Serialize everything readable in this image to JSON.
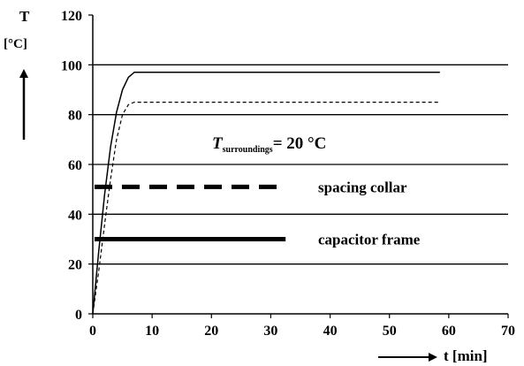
{
  "chart_data": {
    "type": "line",
    "ylabel_symbol": "T",
    "ylabel_unit": "[°C]",
    "xlabel": "t [min]",
    "xlim": [
      0,
      70
    ],
    "ylim": [
      0,
      120
    ],
    "x_ticks": [
      0,
      10,
      20,
      30,
      40,
      50,
      60,
      70
    ],
    "y_ticks": [
      0,
      20,
      40,
      60,
      80,
      100,
      120
    ],
    "grid": "horizontal",
    "annotation": {
      "symbol": "T",
      "subscript": "surroundings",
      "text": "= 20 °C"
    },
    "series": [
      {
        "name": "capacitor frame",
        "style": "solid",
        "color": "#000000",
        "x": [
          0,
          1,
          2,
          3,
          4,
          5,
          6,
          7,
          8,
          10,
          20,
          30,
          40,
          50,
          58.5
        ],
        "y": [
          0,
          25,
          48,
          67,
          81,
          90,
          95,
          97,
          97,
          97,
          97,
          97,
          97,
          97,
          97
        ]
      },
      {
        "name": "spacing collar",
        "style": "dashed",
        "color": "#000000",
        "x": [
          0,
          1,
          2,
          3,
          4,
          5,
          6,
          7,
          10,
          20,
          30,
          40,
          50,
          58.5
        ],
        "y": [
          0,
          17,
          36,
          54,
          70,
          80,
          84,
          85,
          85,
          85,
          85,
          85,
          85,
          85
        ]
      }
    ],
    "legend": {
      "placement": "center",
      "items": [
        {
          "label": "spacing collar",
          "style": "dashed",
          "y": 51
        },
        {
          "label": "capacitor frame",
          "style": "solid",
          "y": 30
        }
      ]
    }
  }
}
